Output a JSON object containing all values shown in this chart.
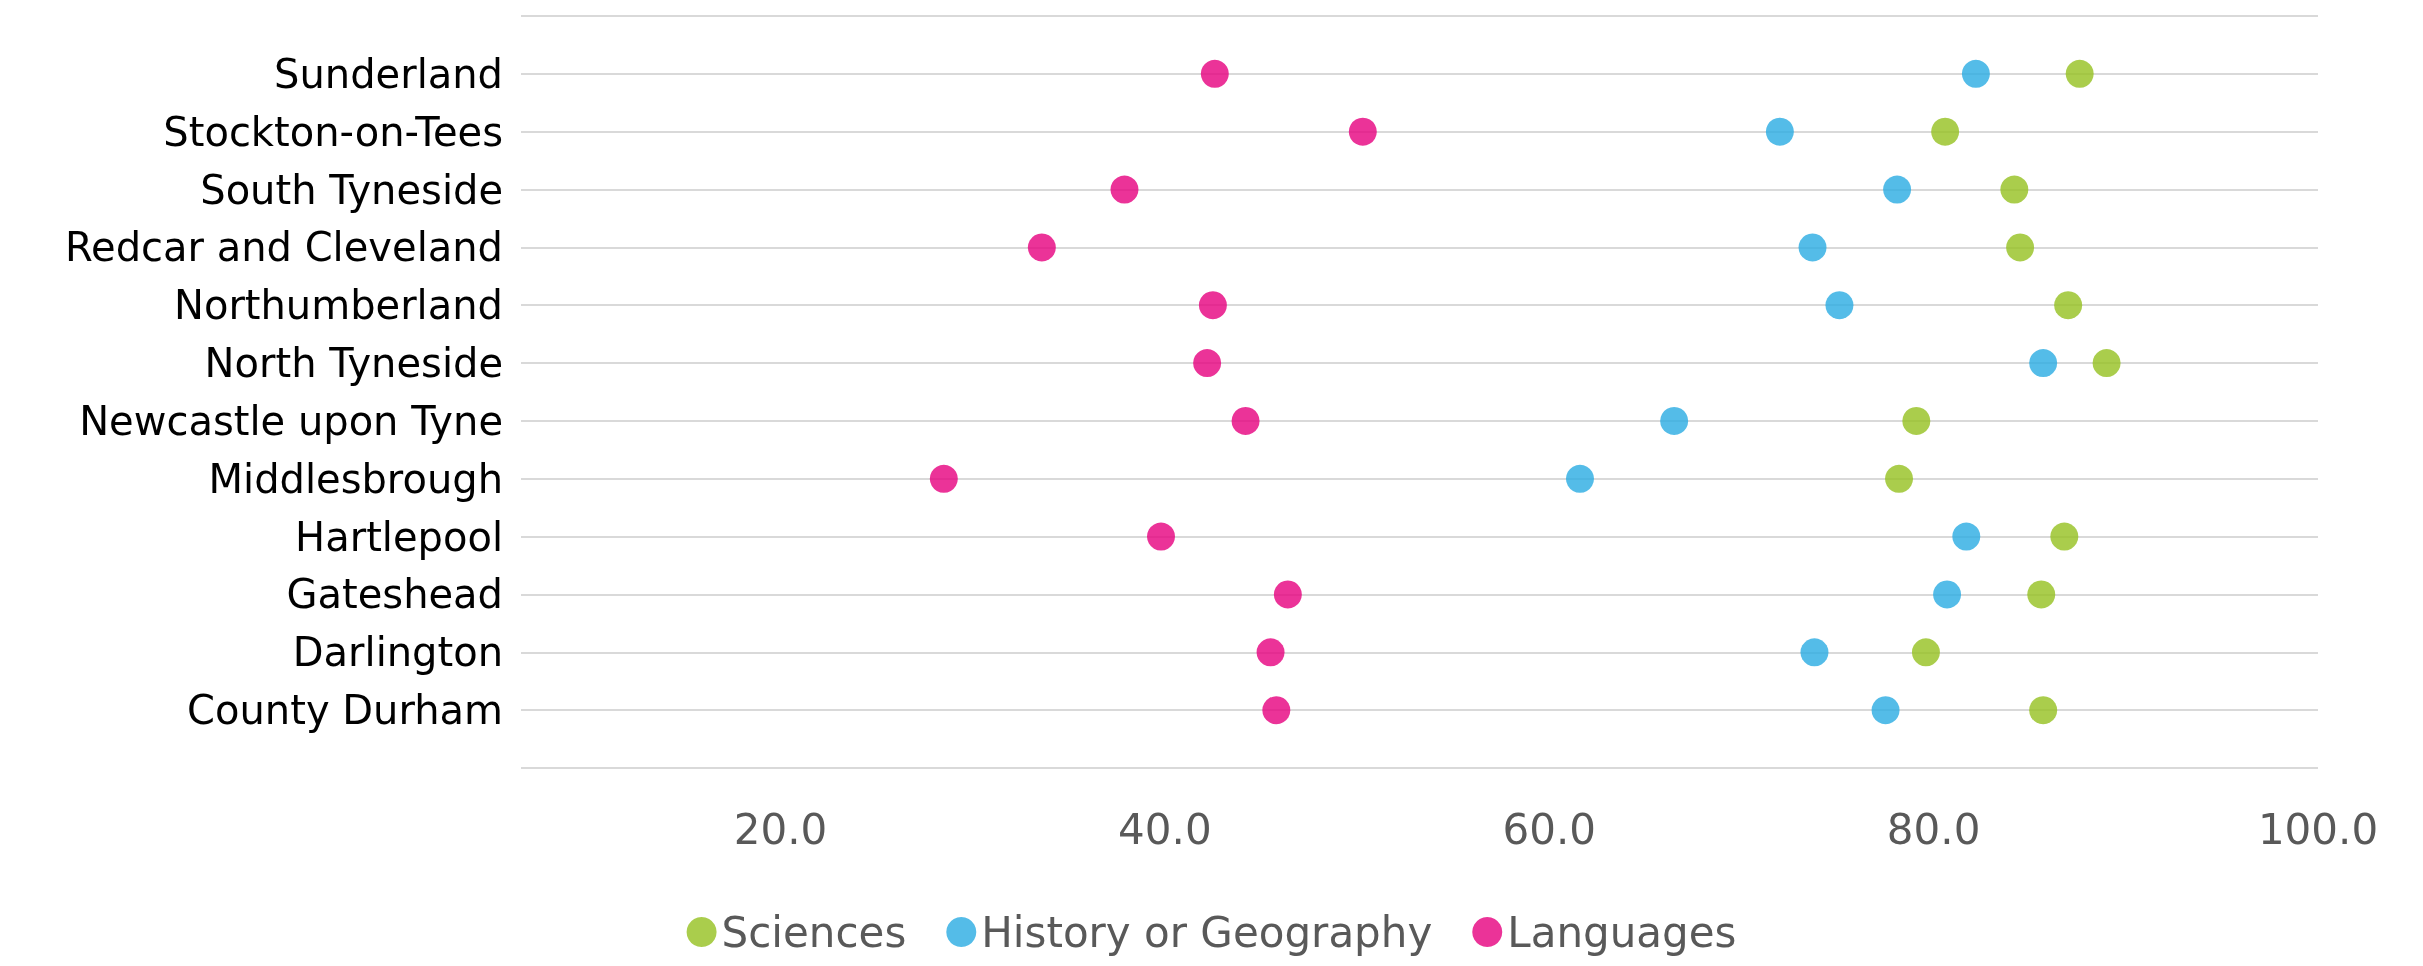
{
  "chart_data": {
    "type": "scatter",
    "orientation": "horizontal",
    "categories": [
      "Sunderland",
      "Stockton-on-Tees",
      "South Tyneside",
      "Redcar and Cleveland",
      "Northumberland",
      "North Tyneside",
      "Newcastle upon Tyne",
      "Middlesbrough",
      "Hartlepool",
      "Gateshead",
      "Darlington",
      "County Durham"
    ],
    "series": [
      {
        "name": "Sciences",
        "color": "#95c11f",
        "values": [
          87.6,
          80.6,
          84.2,
          84.5,
          87.0,
          89.0,
          79.1,
          78.2,
          86.8,
          85.6,
          79.6,
          85.7
        ]
      },
      {
        "name": "History or Geography",
        "color": "#29abe2",
        "values": [
          82.2,
          72.0,
          78.1,
          73.7,
          75.1,
          85.7,
          66.5,
          61.6,
          81.7,
          80.7,
          73.8,
          77.5
        ]
      },
      {
        "name": "Languages",
        "color": "#e6007e",
        "values": [
          42.6,
          50.3,
          37.9,
          33.6,
          42.5,
          42.2,
          44.2,
          28.5,
          39.8,
          46.4,
          45.5,
          45.8
        ]
      }
    ],
    "xlim": [
      6.5,
      100
    ],
    "xticks": [
      {
        "value": 20,
        "label": "20.0"
      },
      {
        "value": 40,
        "label": "40.0"
      },
      {
        "value": 60,
        "label": "60.0"
      },
      {
        "value": 80,
        "label": "80.0"
      },
      {
        "value": 100,
        "label": "100.0"
      }
    ],
    "grid": "y",
    "legend": "bottom",
    "marker": "circle"
  }
}
